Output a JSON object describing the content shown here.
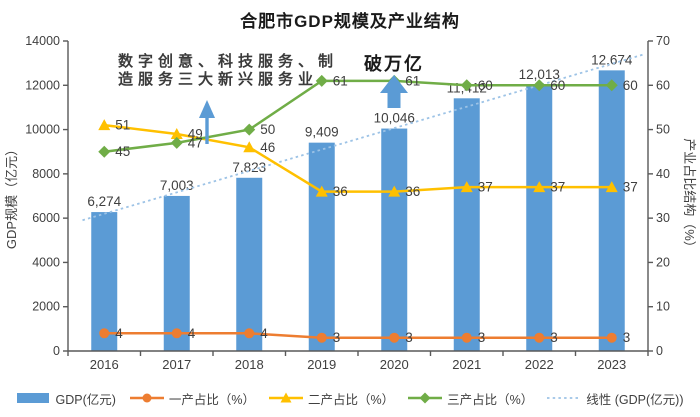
{
  "title": "合肥市GDP规模及产业结构",
  "colors": {
    "bar": "#5B9BD5",
    "primary_line": "#ED7D31",
    "secondary_line": "#FFC000",
    "tertiary_line": "#70AD47",
    "trend": "#9DC3E6",
    "annotation_arrow": "#5B9BD5",
    "label_text": "#404040",
    "axis_line": "#595959",
    "annotation_text": "#3b3b3b"
  },
  "chart_data": {
    "type": "bar",
    "subtype": "combo-bar-line",
    "title": "合肥市GDP规模及产业结构",
    "categories": [
      "2016",
      "2017",
      "2018",
      "2019",
      "2020",
      "2021",
      "2022",
      "2023"
    ],
    "bar_series": {
      "name": "GDP(亿元)",
      "axis": "left",
      "color_key": "bar",
      "values": [
        6274,
        7003,
        7823,
        9409,
        10046,
        11412,
        12013,
        12674
      ],
      "labels": [
        "6,274",
        "7,003",
        "7,823",
        "9,409",
        "10,046",
        "11,412",
        "12,013",
        "12,674"
      ]
    },
    "line_series": [
      {
        "name": "一产占比（%）",
        "marker": "circle",
        "axis": "right",
        "color_key": "primary_line",
        "values": [
          4,
          4,
          4,
          3,
          3,
          3,
          3,
          3
        ]
      },
      {
        "name": "二产占比（%）",
        "marker": "triangle",
        "axis": "right",
        "color_key": "secondary_line",
        "values": [
          51,
          49,
          46,
          36,
          36,
          37,
          37,
          37
        ]
      },
      {
        "name": "三产占比（%）",
        "marker": "diamond",
        "axis": "right",
        "color_key": "tertiary_line",
        "values": [
          45,
          47,
          50,
          61,
          61,
          60,
          60,
          60
        ]
      }
    ],
    "trendline": {
      "name": "线性 (GDP(亿元))",
      "based_on": "GDP(亿元)",
      "style": "dotted",
      "color_key": "trend"
    },
    "left_axis": {
      "title": "GDP规模（亿元）",
      "min": 0,
      "max": 14000,
      "step": 2000
    },
    "right_axis": {
      "title": "产业占比结构（%）",
      "min": 0,
      "max": 70,
      "step": 10
    },
    "grid": false,
    "legend_position": "bottom",
    "annotations": [
      {
        "id": "new-services",
        "lines": [
          "数字创意、科技服务、制",
          "造服务三大新兴服务业"
        ],
        "arrow": "thin-up"
      },
      {
        "id": "trillion",
        "lines": [
          "破万亿"
        ],
        "arrow": "block-up"
      }
    ]
  },
  "legend": {
    "items": [
      {
        "label": "GDP(亿元)",
        "swatch": "bar",
        "color_key": "bar"
      },
      {
        "label": "一产占比（%）",
        "swatch": "line-circle",
        "color_key": "primary_line"
      },
      {
        "label": "二产占比（%）",
        "swatch": "line-triangle",
        "color_key": "secondary_line"
      },
      {
        "label": "三产占比（%）",
        "swatch": "line-diamond",
        "color_key": "tertiary_line"
      },
      {
        "label": "线性 (GDP(亿元))",
        "swatch": "line-dotted",
        "color_key": "trend"
      }
    ]
  }
}
